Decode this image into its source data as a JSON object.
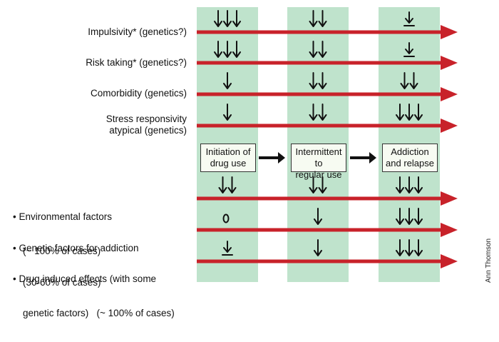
{
  "colors": {
    "band": "#bfe3cc",
    "arrow": "#c8222a",
    "box_fill": "#f7fbf2",
    "stroke": "#111111"
  },
  "icon_names": {
    "down_arrow": "down-arrow-icon",
    "floored_arrow": "floored-down-arrow-icon",
    "zero": "zero-marker"
  },
  "rows": [
    {
      "label": "Impulsivity* (genetics?)",
      "marks": [
        3,
        2,
        "floor"
      ]
    },
    {
      "label": "Risk taking* (genetics?)",
      "marks": [
        3,
        2,
        "floor"
      ]
    },
    {
      "label": "Comorbidity (genetics)",
      "marks": [
        1,
        2,
        2
      ]
    },
    {
      "label": "Stress responsivity\natypical (genetics)",
      "marks": [
        1,
        2,
        3
      ]
    }
  ],
  "stages": [
    {
      "line1": "Initiation of",
      "line2": "drug use"
    },
    {
      "line1": "Intermittent to",
      "line2": "regular use"
    },
    {
      "line1": "Addiction",
      "line2": "and relapse"
    }
  ],
  "bullet_rows": [
    {
      "line1": "• Environmental factors",
      "line2": "(~ 100% of cases)",
      "marks": [
        2,
        2,
        3
      ]
    },
    {
      "line1": "• Genetic factors for addiction",
      "line2": "(30-60% of cases)",
      "marks": [
        "zero",
        1,
        3
      ]
    },
    {
      "line1": "• Drug induced effects (with some",
      "line2": "genetic factors)   (~ 100% of cases)",
      "marks": [
        "floor",
        1,
        3
      ]
    }
  ],
  "credit": "Ann Thomson"
}
